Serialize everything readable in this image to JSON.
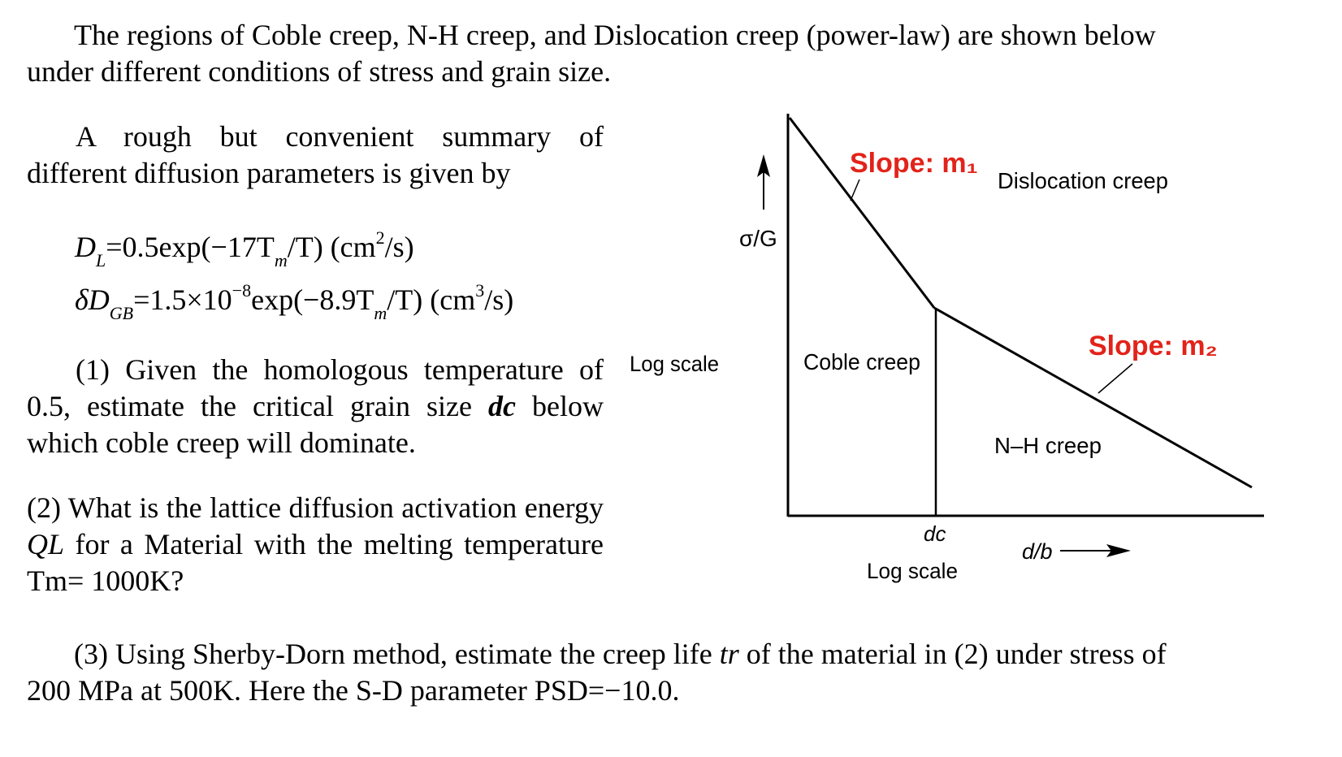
{
  "intro": {
    "line1": "The regions of Coble creep, N-H creep, and Dislocation creep (power-law) are shown below",
    "line2": "under different conditions of stress and grain size."
  },
  "summary": {
    "text": "A rough but convenient summary of different diffusion parameters is given by"
  },
  "equations": {
    "eq1": {
      "symbol": "D",
      "subscript": "L",
      "rhs": "=0.5exp(−17T",
      "tm_sub": "m",
      "tail": "/T)  (cm",
      "power": "2",
      "units_tail": "/s)"
    },
    "eq2": {
      "symbol": "δD",
      "subscript": "GB",
      "rhs": "=1.5×10",
      "exp": "−8",
      "mid": "exp(−8.9T",
      "tm_sub": "m",
      "tail": "/T)  (cm",
      "power": "3",
      "units_tail": "/s)"
    }
  },
  "question1": {
    "a": "(1) Given the homologous temperature of 0.5, estimate the critical grain size ",
    "var": "dc",
    "b": " below which coble creep will dominate."
  },
  "question2": {
    "a": "(2) What is the lattice diffusion activation energy ",
    "var": "QL",
    "b": " for a Material with the melting temperature Tm= 1000K?"
  },
  "question3": {
    "line1_a": "(3) Using Sherby-Dorn method, estimate the creep life ",
    "var": "tr",
    "line1_b": " of the material in (2) under stress of",
    "line2": "200 MPa at 500K. Here the S-D parameter PSD=−10.0."
  },
  "diagram": {
    "y_label": "σ/G",
    "y_scale": "Log scale",
    "x_scale": "Log scale",
    "x_label": "d/b",
    "critical_label": "dc",
    "slope1": "Slope: m₁",
    "slope2": "Slope: m₂",
    "region_dislocation": "Dislocation creep",
    "region_coble": "Coble creep",
    "region_nh": "N–H creep",
    "slope_color": "#e2231a"
  }
}
